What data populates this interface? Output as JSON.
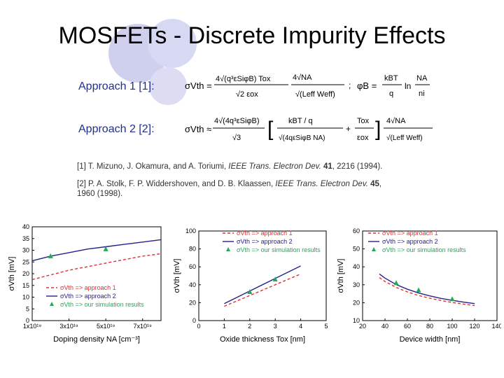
{
  "slide": {
    "title": "MOSFETs - Discrete Impurity Effects",
    "approach1_label": "Approach 1 [1]:",
    "approach2_label": "Approach 2 [2]:",
    "formula1": {
      "lhs": "σVth = ",
      "num": "4√(q³εSiφB) Tox",
      "den": "√2 εox",
      "root_num": "4√NA",
      "root_den": "√(Leff Weff)",
      "sep": ";",
      "phi": "φB = ",
      "phi_num": "kBT",
      "phi_den": "q",
      "ln": "ln",
      "ln_num": "NA",
      "ln_den": "ni"
    },
    "formula2": {
      "lhs": "σVth ≈ ",
      "num": "4√(4q³εSiφB)",
      "den": "√3",
      "t1_num": "kBT / q",
      "t1_den": "√(4qεSiφB NA)",
      "plus": "+",
      "t2_num": "Tox",
      "t2_den": "εox",
      "root_num": "4√NA",
      "root_den": "√(Leff Weff)"
    },
    "ref1": {
      "authors": "[1] T. Mizuno, J. Okamura, and A. Toriumi, ",
      "journal": "IEEE Trans. Electron Dev.",
      "vol": "41",
      "rest": ", 2216 (1994)."
    },
    "ref2": {
      "authors": "[2] P. A. Stolk, F. P. Widdershoven, and D. B. Klaassen, ",
      "journal": "IEEE Trans. Electron Dev.",
      "vol": "45",
      "rest": ",",
      "line2": "1960 (1998)."
    }
  },
  "chart_data": [
    {
      "type": "line",
      "xlabel": "Doping density  NA [cm⁻³]",
      "ylabel": "σVth [mV]",
      "xlim": [
        10000000000000000000,
        80000000000000000000
      ],
      "ylim": [
        0,
        40
      ],
      "xticks": [
        "1x10¹⁹",
        "3x10¹⁹",
        "5x10¹⁹",
        "7x10¹⁹"
      ],
      "yticks": [
        "0",
        "5",
        "10",
        "15",
        "20",
        "25",
        "30",
        "35",
        "40"
      ],
      "legend": [
        "σVth => approach 1",
        "σVth => approach 2",
        "σVth => our simulation results"
      ],
      "series": [
        {
          "name": "σVth => approach 1",
          "x": [
            1e+19,
            2e+19,
            3e+19,
            4e+19,
            5e+19,
            6e+19,
            7e+19,
            8e+19
          ],
          "values": [
            17.5,
            19.5,
            21.5,
            23,
            24.5,
            26,
            27.5,
            28.5
          ]
        },
        {
          "name": "σVth => approach 2",
          "x": [
            1e+19,
            2e+19,
            3e+19,
            4e+19,
            5e+19,
            6e+19,
            7e+19,
            8e+19
          ],
          "values": [
            25.5,
            27.5,
            29,
            30.5,
            31.5,
            32.5,
            33.5,
            34.5
          ]
        },
        {
          "name": "σVth => our simulation results",
          "x": [
            2e+19,
            5e+19
          ],
          "values": [
            27.5,
            30.5
          ]
        }
      ]
    },
    {
      "type": "line",
      "xlabel": "Oxide thickness Tox [nm]",
      "ylabel": "σVth [mV]",
      "xlim": [
        0,
        5
      ],
      "ylim": [
        0,
        100
      ],
      "xticks": [
        "0",
        "1",
        "2",
        "3",
        "4",
        "5"
      ],
      "yticks": [
        "0",
        "20",
        "40",
        "60",
        "80",
        "100"
      ],
      "legend": [
        "σVth => approach 1",
        "σVth => approach 2",
        "σVth => our simulation results"
      ],
      "series": [
        {
          "name": "σVth => approach 1",
          "x": [
            1,
            2,
            3,
            4
          ],
          "values": [
            16,
            28,
            40,
            52
          ]
        },
        {
          "name": "σVth => approach 2",
          "x": [
            1,
            2,
            3,
            4
          ],
          "values": [
            19,
            33,
            47,
            61
          ]
        },
        {
          "name": "σVth => our simulation results",
          "x": [
            2,
            3
          ],
          "values": [
            32,
            46
          ]
        }
      ]
    },
    {
      "type": "line",
      "xlabel": "Device width [nm]",
      "ylabel": "σVth [mV]",
      "xlim": [
        20,
        140
      ],
      "ylim": [
        10,
        60
      ],
      "xticks": [
        "20",
        "40",
        "60",
        "80",
        "100",
        "120",
        "140"
      ],
      "yticks": [
        "10",
        "20",
        "30",
        "40",
        "50",
        "60"
      ],
      "legend": [
        "σVth => approach 1",
        "σVth => approach 2",
        "σVth => our simulation results"
      ],
      "series": [
        {
          "name": "σVth => approach 1",
          "x": [
            35,
            40,
            50,
            60,
            70,
            80,
            90,
            100,
            110,
            120
          ],
          "values": [
            34,
            31.8,
            28.5,
            26,
            24,
            22.5,
            21.2,
            20.1,
            19.2,
            18.4
          ]
        },
        {
          "name": "σVth => approach 2",
          "x": [
            35,
            40,
            50,
            60,
            70,
            80,
            90,
            100,
            110,
            120
          ],
          "values": [
            36,
            33.7,
            30.1,
            27.5,
            25.4,
            23.8,
            22.4,
            21.3,
            20.3,
            19.5
          ]
        },
        {
          "name": "σVth => our simulation results",
          "x": [
            50,
            70,
            100
          ],
          "values": [
            31,
            27,
            22
          ]
        }
      ]
    }
  ]
}
